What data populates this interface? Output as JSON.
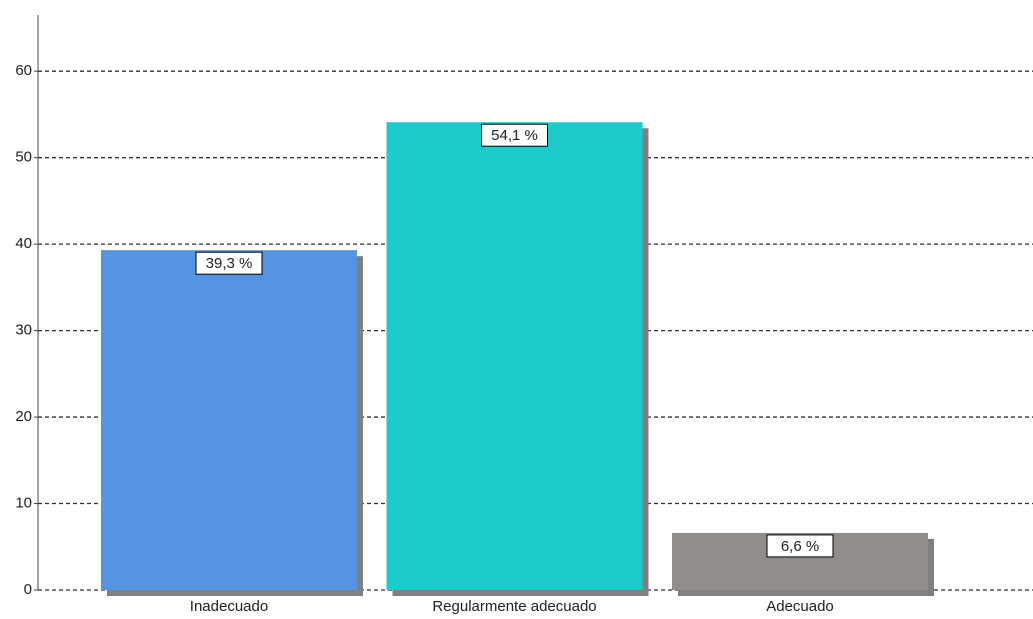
{
  "chart_data": {
    "type": "bar",
    "categories": [
      "Inadecuado",
      "Regularmente adecuado",
      "Adecuado"
    ],
    "values": [
      39.3,
      54.1,
      6.6
    ],
    "value_labels": [
      "39,3 %",
      "54,1 %",
      "6,6 %"
    ],
    "colors": [
      "#5594e3",
      "#1ccbcb",
      "#918d8b"
    ],
    "ylim": [
      0,
      66.5
    ],
    "yticks": [
      0,
      10,
      20,
      30,
      40,
      50,
      60
    ],
    "grid": true
  }
}
